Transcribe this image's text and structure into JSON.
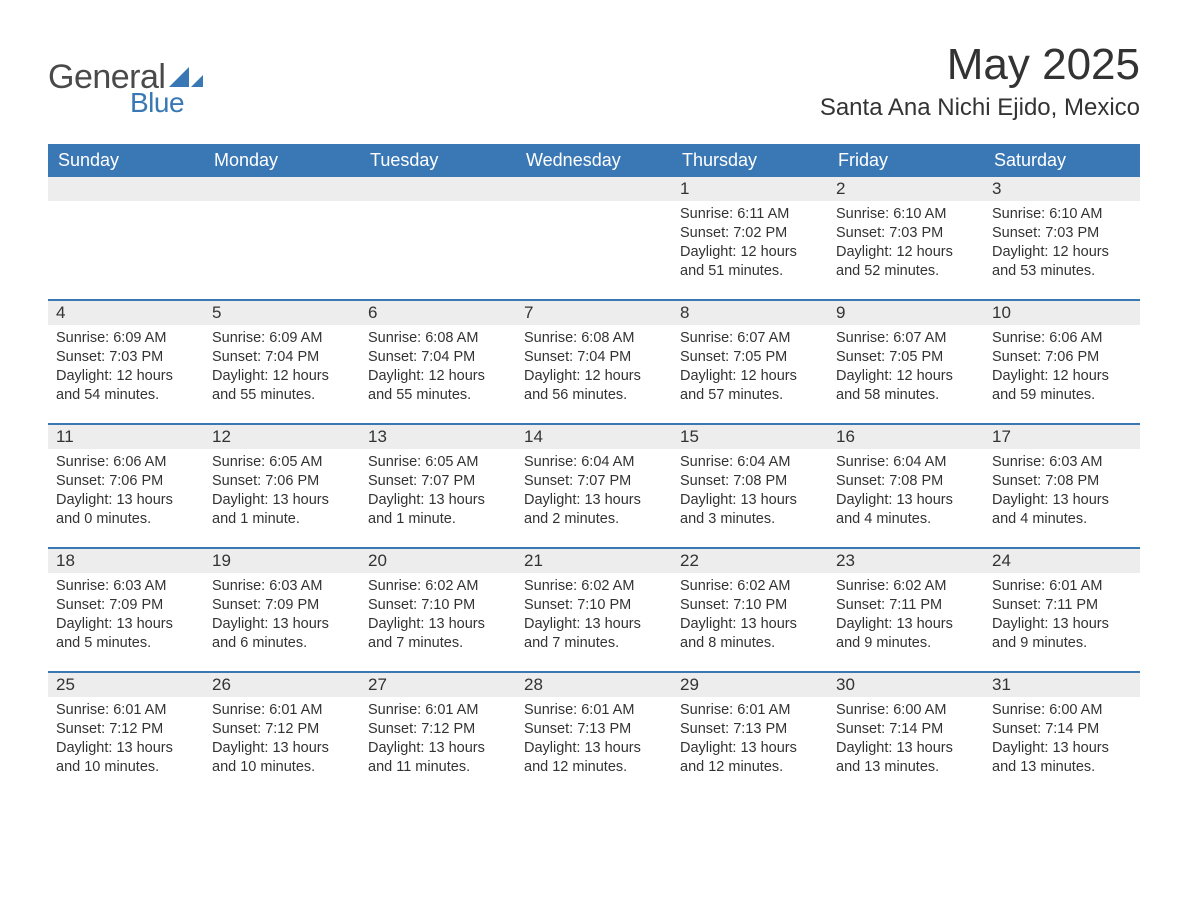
{
  "logo": {
    "text_general": "General",
    "text_blue": "Blue",
    "triangle_color": "#3a78b5"
  },
  "header": {
    "month_title": "May 2025",
    "location": "Santa Ana Nichi Ejido, Mexico"
  },
  "colors": {
    "header_bg": "#3a78b5",
    "header_text": "#ffffff",
    "daynum_bg": "#ededed",
    "row_border": "#3a78b5",
    "body_text": "#333333",
    "page_bg": "#ffffff"
  },
  "weekdays": [
    "Sunday",
    "Monday",
    "Tuesday",
    "Wednesday",
    "Thursday",
    "Friday",
    "Saturday"
  ],
  "weeks": [
    [
      {
        "day": "",
        "sunrise": "",
        "sunset": "",
        "daylight": ""
      },
      {
        "day": "",
        "sunrise": "",
        "sunset": "",
        "daylight": ""
      },
      {
        "day": "",
        "sunrise": "",
        "sunset": "",
        "daylight": ""
      },
      {
        "day": "",
        "sunrise": "",
        "sunset": "",
        "daylight": ""
      },
      {
        "day": "1",
        "sunrise": "Sunrise: 6:11 AM",
        "sunset": "Sunset: 7:02 PM",
        "daylight": "Daylight: 12 hours and 51 minutes."
      },
      {
        "day": "2",
        "sunrise": "Sunrise: 6:10 AM",
        "sunset": "Sunset: 7:03 PM",
        "daylight": "Daylight: 12 hours and 52 minutes."
      },
      {
        "day": "3",
        "sunrise": "Sunrise: 6:10 AM",
        "sunset": "Sunset: 7:03 PM",
        "daylight": "Daylight: 12 hours and 53 minutes."
      }
    ],
    [
      {
        "day": "4",
        "sunrise": "Sunrise: 6:09 AM",
        "sunset": "Sunset: 7:03 PM",
        "daylight": "Daylight: 12 hours and 54 minutes."
      },
      {
        "day": "5",
        "sunrise": "Sunrise: 6:09 AM",
        "sunset": "Sunset: 7:04 PM",
        "daylight": "Daylight: 12 hours and 55 minutes."
      },
      {
        "day": "6",
        "sunrise": "Sunrise: 6:08 AM",
        "sunset": "Sunset: 7:04 PM",
        "daylight": "Daylight: 12 hours and 55 minutes."
      },
      {
        "day": "7",
        "sunrise": "Sunrise: 6:08 AM",
        "sunset": "Sunset: 7:04 PM",
        "daylight": "Daylight: 12 hours and 56 minutes."
      },
      {
        "day": "8",
        "sunrise": "Sunrise: 6:07 AM",
        "sunset": "Sunset: 7:05 PM",
        "daylight": "Daylight: 12 hours and 57 minutes."
      },
      {
        "day": "9",
        "sunrise": "Sunrise: 6:07 AM",
        "sunset": "Sunset: 7:05 PM",
        "daylight": "Daylight: 12 hours and 58 minutes."
      },
      {
        "day": "10",
        "sunrise": "Sunrise: 6:06 AM",
        "sunset": "Sunset: 7:06 PM",
        "daylight": "Daylight: 12 hours and 59 minutes."
      }
    ],
    [
      {
        "day": "11",
        "sunrise": "Sunrise: 6:06 AM",
        "sunset": "Sunset: 7:06 PM",
        "daylight": "Daylight: 13 hours and 0 minutes."
      },
      {
        "day": "12",
        "sunrise": "Sunrise: 6:05 AM",
        "sunset": "Sunset: 7:06 PM",
        "daylight": "Daylight: 13 hours and 1 minute."
      },
      {
        "day": "13",
        "sunrise": "Sunrise: 6:05 AM",
        "sunset": "Sunset: 7:07 PM",
        "daylight": "Daylight: 13 hours and 1 minute."
      },
      {
        "day": "14",
        "sunrise": "Sunrise: 6:04 AM",
        "sunset": "Sunset: 7:07 PM",
        "daylight": "Daylight: 13 hours and 2 minutes."
      },
      {
        "day": "15",
        "sunrise": "Sunrise: 6:04 AM",
        "sunset": "Sunset: 7:08 PM",
        "daylight": "Daylight: 13 hours and 3 minutes."
      },
      {
        "day": "16",
        "sunrise": "Sunrise: 6:04 AM",
        "sunset": "Sunset: 7:08 PM",
        "daylight": "Daylight: 13 hours and 4 minutes."
      },
      {
        "day": "17",
        "sunrise": "Sunrise: 6:03 AM",
        "sunset": "Sunset: 7:08 PM",
        "daylight": "Daylight: 13 hours and 4 minutes."
      }
    ],
    [
      {
        "day": "18",
        "sunrise": "Sunrise: 6:03 AM",
        "sunset": "Sunset: 7:09 PM",
        "daylight": "Daylight: 13 hours and 5 minutes."
      },
      {
        "day": "19",
        "sunrise": "Sunrise: 6:03 AM",
        "sunset": "Sunset: 7:09 PM",
        "daylight": "Daylight: 13 hours and 6 minutes."
      },
      {
        "day": "20",
        "sunrise": "Sunrise: 6:02 AM",
        "sunset": "Sunset: 7:10 PM",
        "daylight": "Daylight: 13 hours and 7 minutes."
      },
      {
        "day": "21",
        "sunrise": "Sunrise: 6:02 AM",
        "sunset": "Sunset: 7:10 PM",
        "daylight": "Daylight: 13 hours and 7 minutes."
      },
      {
        "day": "22",
        "sunrise": "Sunrise: 6:02 AM",
        "sunset": "Sunset: 7:10 PM",
        "daylight": "Daylight: 13 hours and 8 minutes."
      },
      {
        "day": "23",
        "sunrise": "Sunrise: 6:02 AM",
        "sunset": "Sunset: 7:11 PM",
        "daylight": "Daylight: 13 hours and 9 minutes."
      },
      {
        "day": "24",
        "sunrise": "Sunrise: 6:01 AM",
        "sunset": "Sunset: 7:11 PM",
        "daylight": "Daylight: 13 hours and 9 minutes."
      }
    ],
    [
      {
        "day": "25",
        "sunrise": "Sunrise: 6:01 AM",
        "sunset": "Sunset: 7:12 PM",
        "daylight": "Daylight: 13 hours and 10 minutes."
      },
      {
        "day": "26",
        "sunrise": "Sunrise: 6:01 AM",
        "sunset": "Sunset: 7:12 PM",
        "daylight": "Daylight: 13 hours and 10 minutes."
      },
      {
        "day": "27",
        "sunrise": "Sunrise: 6:01 AM",
        "sunset": "Sunset: 7:12 PM",
        "daylight": "Daylight: 13 hours and 11 minutes."
      },
      {
        "day": "28",
        "sunrise": "Sunrise: 6:01 AM",
        "sunset": "Sunset: 7:13 PM",
        "daylight": "Daylight: 13 hours and 12 minutes."
      },
      {
        "day": "29",
        "sunrise": "Sunrise: 6:01 AM",
        "sunset": "Sunset: 7:13 PM",
        "daylight": "Daylight: 13 hours and 12 minutes."
      },
      {
        "day": "30",
        "sunrise": "Sunrise: 6:00 AM",
        "sunset": "Sunset: 7:14 PM",
        "daylight": "Daylight: 13 hours and 13 minutes."
      },
      {
        "day": "31",
        "sunrise": "Sunrise: 6:00 AM",
        "sunset": "Sunset: 7:14 PM",
        "daylight": "Daylight: 13 hours and 13 minutes."
      }
    ]
  ]
}
